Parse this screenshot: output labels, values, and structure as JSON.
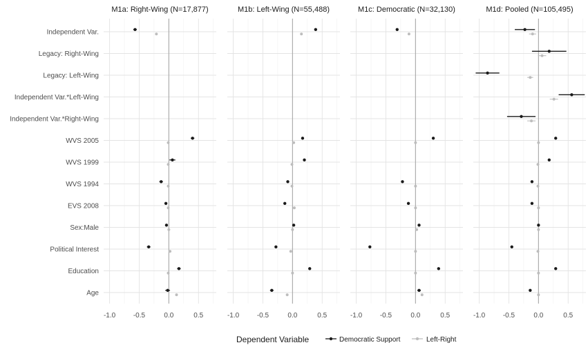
{
  "chart_data": {
    "type": "coefficient-plot",
    "panels": [
      {
        "title": "M1a: Right-Wing (N=17,877)",
        "xlim": [
          -1.1,
          0.8
        ]
      },
      {
        "title": "M1b: Left-Wing (N=55,488)",
        "xlim": [
          -1.1,
          0.8
        ]
      },
      {
        "title": "M1c: Democratic (N=32,130)",
        "xlim": [
          -1.1,
          0.8
        ]
      },
      {
        "title": "M1d: Pooled (N=105,495)",
        "xlim": [
          -1.1,
          0.8
        ]
      }
    ],
    "x_ticks": [
      -1.0,
      -0.5,
      0.0,
      0.5
    ],
    "x_tick_labels": [
      "-1.0",
      "-0.5",
      "0.0",
      "0.5"
    ],
    "terms": [
      "Independent Var.",
      "Legacy: Right-Wing",
      "Legacy: Left-Wing",
      "Independent Var.*Left-Wing",
      "Independent Var.*Right-Wing",
      "WVS 2005",
      "WVS 1999",
      "WVS 1994",
      "EVS 2008",
      "Sex:Male",
      "Political Interest",
      "Education",
      "Age"
    ],
    "series": [
      {
        "name": "Democratic Support",
        "color": "#1a1a1a",
        "estimates": [
          [
            [
              -0.57,
              -0.6,
              -0.54
            ],
            null,
            null,
            null,
            null,
            [
              0.4,
              0.37,
              0.43
            ],
            [
              0.06,
              0.01,
              0.11
            ],
            [
              -0.13,
              -0.16,
              -0.1
            ],
            [
              -0.05,
              -0.07,
              -0.03
            ],
            [
              -0.04,
              -0.06,
              -0.02
            ],
            [
              -0.34,
              -0.37,
              -0.31
            ],
            [
              0.17,
              0.14,
              0.2
            ],
            [
              -0.02,
              -0.06,
              0.02
            ]
          ],
          [
            [
              0.39,
              0.37,
              0.41
            ],
            null,
            null,
            null,
            null,
            [
              0.17,
              0.15,
              0.19
            ],
            [
              0.2,
              0.18,
              0.22
            ],
            [
              -0.08,
              -0.1,
              -0.06
            ],
            [
              -0.13,
              -0.15,
              -0.11
            ],
            [
              0.02,
              0.0,
              0.04
            ],
            [
              -0.28,
              -0.3,
              -0.26
            ],
            [
              0.29,
              0.28,
              0.3
            ],
            [
              -0.35,
              -0.38,
              -0.32
            ]
          ],
          [
            [
              -0.31,
              -0.33,
              -0.29
            ],
            null,
            null,
            null,
            null,
            [
              0.3,
              0.29,
              0.31
            ],
            null,
            [
              -0.22,
              -0.24,
              -0.2
            ],
            [
              -0.12,
              -0.14,
              -0.1
            ],
            [
              0.06,
              0.05,
              0.07
            ],
            [
              -0.77,
              -0.78,
              -0.76
            ],
            [
              0.39,
              0.38,
              0.4
            ],
            [
              0.06,
              0.03,
              0.09
            ]
          ],
          [
            [
              -0.23,
              -0.4,
              -0.06
            ],
            [
              0.18,
              -0.11,
              0.47
            ],
            [
              -0.86,
              -1.06,
              -0.66
            ],
            [
              0.56,
              0.34,
              0.78
            ],
            [
              -0.29,
              -0.53,
              -0.05
            ],
            [
              0.29,
              0.28,
              0.3
            ],
            [
              0.18,
              0.16,
              0.2
            ],
            [
              -0.11,
              -0.13,
              -0.09
            ],
            [
              -0.11,
              -0.13,
              -0.09
            ],
            [
              0.0,
              -0.01,
              0.01
            ],
            [
              -0.45,
              -0.46,
              -0.44
            ],
            [
              0.29,
              0.28,
              0.3
            ],
            [
              -0.14,
              -0.16,
              -0.12
            ]
          ]
        ]
      },
      {
        "name": "Left-Right",
        "color": "#bdbdbd",
        "estimates": [
          [
            [
              -0.21,
              -0.22,
              -0.2
            ],
            null,
            null,
            null,
            null,
            [
              -0.01,
              -0.02,
              0.0
            ],
            [
              -0.01,
              -0.02,
              0.0
            ],
            [
              -0.01,
              -0.02,
              0.0
            ],
            [
              -0.01,
              -0.02,
              0.0
            ],
            [
              0.0,
              -0.01,
              0.01
            ],
            [
              0.02,
              0.01,
              0.03
            ],
            [
              -0.01,
              -0.02,
              0.0
            ],
            [
              0.13,
              0.12,
              0.14
            ]
          ],
          [
            [
              0.15,
              0.14,
              0.16
            ],
            null,
            null,
            null,
            null,
            [
              0.02,
              0.01,
              0.03
            ],
            [
              -0.01,
              -0.02,
              0.0
            ],
            [
              -0.01,
              -0.02,
              0.0
            ],
            [
              0.03,
              0.02,
              0.04
            ],
            [
              0.0,
              -0.01,
              0.01
            ],
            [
              -0.03,
              -0.04,
              -0.02
            ],
            [
              0.0,
              -0.01,
              0.01
            ],
            [
              -0.09,
              -0.1,
              -0.08
            ]
          ],
          [
            [
              -0.11,
              -0.12,
              -0.1
            ],
            null,
            null,
            null,
            null,
            [
              0.0,
              -0.01,
              0.01
            ],
            null,
            [
              0.0,
              -0.01,
              0.01
            ],
            [
              0.0,
              -0.01,
              0.01
            ],
            [
              0.02,
              0.01,
              0.03
            ],
            [
              0.0,
              -0.01,
              0.01
            ],
            [
              0.0,
              -0.01,
              0.01
            ],
            [
              0.11,
              0.1,
              0.12
            ]
          ],
          [
            [
              -0.1,
              -0.16,
              -0.04
            ],
            [
              0.06,
              -0.01,
              0.13
            ],
            [
              -0.14,
              -0.19,
              -0.09
            ],
            [
              0.26,
              0.19,
              0.33
            ],
            [
              -0.12,
              -0.19,
              -0.05
            ],
            [
              0.0,
              -0.01,
              0.01
            ],
            [
              -0.01,
              -0.02,
              0.0
            ],
            [
              -0.01,
              -0.02,
              0.0
            ],
            [
              0.0,
              -0.01,
              0.01
            ],
            [
              0.0,
              -0.01,
              0.01
            ],
            [
              -0.01,
              -0.02,
              0.0
            ],
            [
              0.0,
              -0.01,
              0.01
            ],
            [
              0.0,
              -0.01,
              0.01
            ]
          ]
        ]
      }
    ],
    "grid": true,
    "legend": {
      "position": "bottom",
      "title": "Dependent Variable"
    }
  }
}
